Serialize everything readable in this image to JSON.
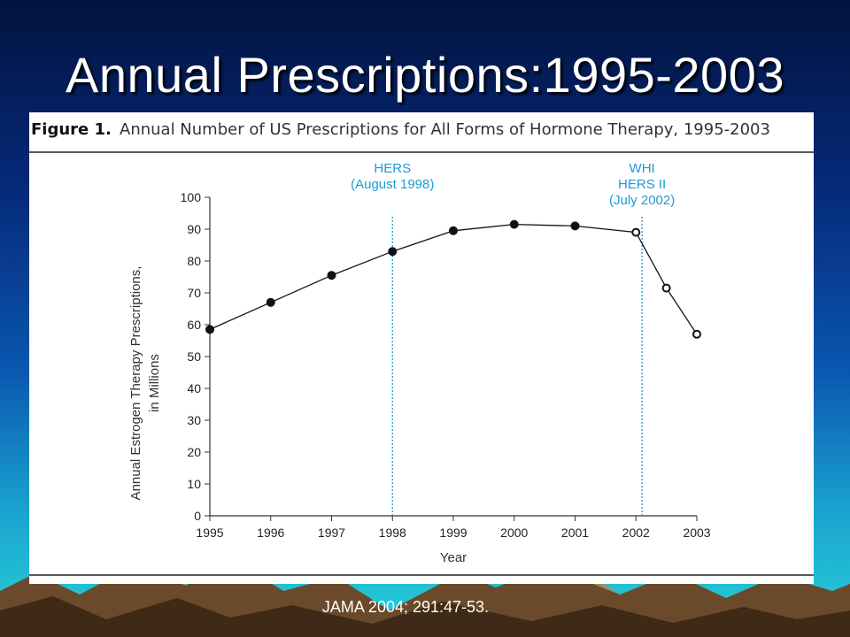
{
  "slide": {
    "title": "Annual Prescriptions:1995-2003",
    "citation": "JAMA 2004; 291:47-53."
  },
  "figure": {
    "label": "Figure 1.",
    "caption": "Annual Number of US Prescriptions for All Forms of Hormone Therapy, 1995-2003"
  },
  "chart_data": {
    "type": "line",
    "title": "Annual Number of US Prescriptions for All Forms of Hormone Therapy, 1995-2003",
    "xlabel": "Year",
    "ylabel": [
      "Annual Estrogen Therapy Prescriptions,",
      "in Millions"
    ],
    "xlim": [
      1995,
      2003
    ],
    "ylim": [
      0,
      100
    ],
    "x_ticks": [
      "1995",
      "1996",
      "1997",
      "1998",
      "1999",
      "2000",
      "2001",
      "2002",
      "2003"
    ],
    "y_ticks": [
      "0",
      "10",
      "20",
      "30",
      "40",
      "50",
      "60",
      "70",
      "80",
      "90",
      "100"
    ],
    "grid": false,
    "series": [
      {
        "points": [
          {
            "x": 1995,
            "y": 58.5,
            "marker": "filled"
          },
          {
            "x": 1996,
            "y": 67,
            "marker": "filled"
          },
          {
            "x": 1997,
            "y": 75.5,
            "marker": "filled"
          },
          {
            "x": 1998,
            "y": 83,
            "marker": "filled"
          },
          {
            "x": 1999,
            "y": 89.5,
            "marker": "filled"
          },
          {
            "x": 2000,
            "y": 91.5,
            "marker": "filled"
          },
          {
            "x": 2001,
            "y": 91,
            "marker": "filled"
          },
          {
            "x": 2002,
            "y": 89,
            "marker": "open"
          },
          {
            "x": 2002.5,
            "y": 71.5,
            "marker": "open"
          },
          {
            "x": 2003,
            "y": 57,
            "marker": "open"
          }
        ]
      }
    ],
    "annotations": [
      {
        "x": 1998,
        "lines": [
          "HERS",
          "(August 1998)"
        ],
        "color": "#1e9ad6"
      },
      {
        "x": 2002.1,
        "lines": [
          "WHI",
          "HERS II",
          "(July 2002)"
        ],
        "color": "#1e9ad6"
      }
    ]
  }
}
